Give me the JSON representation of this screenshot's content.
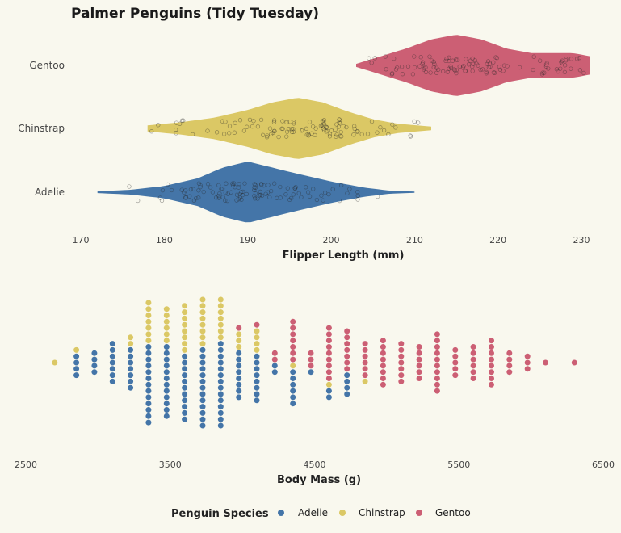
{
  "colors": {
    "Adelie": "#4475a8",
    "Chinstrap": "#dbc865",
    "Gentoo": "#cc5f74",
    "background": "#f9f8ee"
  },
  "legend": {
    "title": "Penguin Species",
    "entries": [
      "Adelie",
      "Chinstrap",
      "Gentoo"
    ],
    "position": "bottom"
  },
  "chart_data": [
    {
      "type": "violin",
      "title": "Palmer Penguins (Tidy Tuesday)",
      "xlabel": "Flipper Length (mm)",
      "ylabel": "",
      "xlim": [
        170,
        230
      ],
      "xticks": [
        170,
        180,
        190,
        200,
        210,
        220,
        230
      ],
      "categories": [
        "Gentoo",
        "Chinstrap",
        "Adelie"
      ],
      "series": [
        {
          "category": "Gentoo",
          "range": [
            203,
            231
          ],
          "mode": 216,
          "density": [
            [
              203,
              0.05
            ],
            [
              206,
              0.3
            ],
            [
              209,
              0.55
            ],
            [
              212,
              0.85
            ],
            [
              215,
              1.0
            ],
            [
              218,
              0.85
            ],
            [
              221,
              0.55
            ],
            [
              224,
              0.4
            ],
            [
              227,
              0.4
            ],
            [
              229,
              0.4
            ],
            [
              231,
              0.3
            ]
          ]
        },
        {
          "category": "Chinstrap",
          "range": [
            178,
            212
          ],
          "mode": 196,
          "density": [
            [
              178,
              0.1
            ],
            [
              182,
              0.2
            ],
            [
              186,
              0.35
            ],
            [
              190,
              0.6
            ],
            [
              193,
              0.85
            ],
            [
              196,
              1.0
            ],
            [
              199,
              0.85
            ],
            [
              202,
              0.55
            ],
            [
              205,
              0.3
            ],
            [
              208,
              0.15
            ],
            [
              212,
              0.06
            ]
          ]
        },
        {
          "category": "Adelie",
          "range": [
            172,
            210
          ],
          "mode": 190,
          "density": [
            [
              172,
              0.03
            ],
            [
              176,
              0.08
            ],
            [
              180,
              0.2
            ],
            [
              184,
              0.45
            ],
            [
              187,
              0.8
            ],
            [
              190,
              1.0
            ],
            [
              193,
              0.8
            ],
            [
              196,
              0.6
            ],
            [
              200,
              0.35
            ],
            [
              204,
              0.15
            ],
            [
              207,
              0.05
            ],
            [
              210,
              0.02
            ]
          ]
        }
      ]
    },
    {
      "type": "dotplot",
      "xlabel": "Body Mass (g)",
      "xlim": [
        2500,
        6500
      ],
      "xticks": [
        2500,
        3500,
        4500,
        5500,
        6500
      ],
      "bins": [
        {
          "x": 2700,
          "Adelie": 0,
          "Chinstrap": 1,
          "Gentoo": 0
        },
        {
          "x": 2850,
          "Adelie": 4,
          "Chinstrap": 1,
          "Gentoo": 0
        },
        {
          "x": 2975,
          "Adelie": 4,
          "Chinstrap": 0,
          "Gentoo": 0
        },
        {
          "x": 3100,
          "Adelie": 7,
          "Chinstrap": 0,
          "Gentoo": 0
        },
        {
          "x": 3225,
          "Adelie": 7,
          "Chinstrap": 2,
          "Gentoo": 0
        },
        {
          "x": 3350,
          "Adelie": 13,
          "Chinstrap": 7,
          "Gentoo": 0
        },
        {
          "x": 3475,
          "Adelie": 12,
          "Chinstrap": 6,
          "Gentoo": 0
        },
        {
          "x": 3600,
          "Adelie": 11,
          "Chinstrap": 8,
          "Gentoo": 0
        },
        {
          "x": 3725,
          "Adelie": 13,
          "Chinstrap": 8,
          "Gentoo": 0
        },
        {
          "x": 3850,
          "Adelie": 14,
          "Chinstrap": 7,
          "Gentoo": 0
        },
        {
          "x": 3975,
          "Adelie": 8,
          "Chinstrap": 3,
          "Gentoo": 1
        },
        {
          "x": 4100,
          "Adelie": 8,
          "Chinstrap": 4,
          "Gentoo": 1
        },
        {
          "x": 4225,
          "Adelie": 2,
          "Chinstrap": 0,
          "Gentoo": 2
        },
        {
          "x": 4350,
          "Adelie": 6,
          "Chinstrap": 1,
          "Gentoo": 7
        },
        {
          "x": 4475,
          "Adelie": 1,
          "Chinstrap": 0,
          "Gentoo": 3
        },
        {
          "x": 4600,
          "Adelie": 2,
          "Chinstrap": 1,
          "Gentoo": 9
        },
        {
          "x": 4725,
          "Adelie": 4,
          "Chinstrap": 0,
          "Gentoo": 7
        },
        {
          "x": 4850,
          "Adelie": 0,
          "Chinstrap": 1,
          "Gentoo": 6
        },
        {
          "x": 4975,
          "Adelie": 0,
          "Chinstrap": 0,
          "Gentoo": 8
        },
        {
          "x": 5100,
          "Adelie": 0,
          "Chinstrap": 0,
          "Gentoo": 7
        },
        {
          "x": 5225,
          "Adelie": 0,
          "Chinstrap": 0,
          "Gentoo": 6
        },
        {
          "x": 5350,
          "Adelie": 0,
          "Chinstrap": 0,
          "Gentoo": 10
        },
        {
          "x": 5475,
          "Adelie": 0,
          "Chinstrap": 0,
          "Gentoo": 5
        },
        {
          "x": 5600,
          "Adelie": 0,
          "Chinstrap": 0,
          "Gentoo": 6
        },
        {
          "x": 5725,
          "Adelie": 0,
          "Chinstrap": 0,
          "Gentoo": 8
        },
        {
          "x": 5850,
          "Adelie": 0,
          "Chinstrap": 0,
          "Gentoo": 4
        },
        {
          "x": 5975,
          "Adelie": 0,
          "Chinstrap": 0,
          "Gentoo": 3
        },
        {
          "x": 6100,
          "Adelie": 0,
          "Chinstrap": 0,
          "Gentoo": 1
        },
        {
          "x": 6300,
          "Adelie": 0,
          "Chinstrap": 0,
          "Gentoo": 1
        }
      ]
    }
  ]
}
